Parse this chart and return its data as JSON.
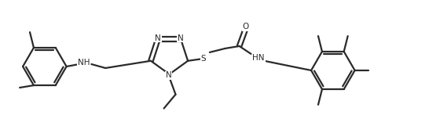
{
  "bg_color": "#ffffff",
  "line_color": "#2a2a2a",
  "line_width": 1.6,
  "font_size": 7.5,
  "figsize": [
    5.6,
    1.7
  ],
  "dpi": 100,
  "xlim": [
    0,
    56
  ],
  "ylim": [
    0,
    17
  ]
}
